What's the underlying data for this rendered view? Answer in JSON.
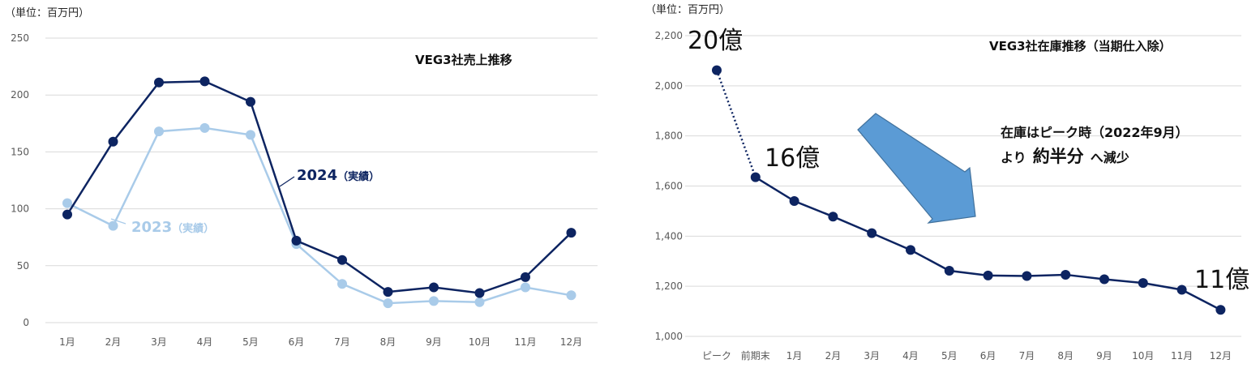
{
  "chart_data": [
    {
      "type": "line",
      "title": "VEG3社売上推移",
      "unit_label": "（単位：百万円）",
      "categories": [
        "1月",
        "2月",
        "3月",
        "4月",
        "5月",
        "6月",
        "7月",
        "8月",
        "9月",
        "10月",
        "11月",
        "12月"
      ],
      "ylim": [
        0,
        250
      ],
      "yticks": [
        "0",
        "50",
        "100",
        "150",
        "200",
        "250"
      ],
      "grid": true,
      "series": [
        {
          "name": "2023（実績）",
          "name_year": "2023",
          "name_suffix": "（実績）",
          "color": "#a9cbe9",
          "values": [
            105,
            85,
            168,
            171,
            165,
            69,
            34,
            17,
            19,
            18,
            31,
            24
          ]
        },
        {
          "name": "2024（実績）",
          "name_year": "2024",
          "name_suffix": "（実績）",
          "color": "#0d2461",
          "values": [
            95,
            159,
            211,
            212,
            194,
            72,
            55,
            27,
            31,
            26,
            40,
            79
          ]
        }
      ]
    },
    {
      "type": "line",
      "title": "VEG3社在庫推移（当期仕入除）",
      "unit_label": "（単位：百万円）",
      "categories": [
        "ピーク",
        "前期末",
        "1月",
        "2月",
        "3月",
        "4月",
        "5月",
        "6月",
        "7月",
        "8月",
        "9月",
        "10月",
        "11月",
        "12月"
      ],
      "ylim": [
        1000,
        2200
      ],
      "yticks": [
        "1,000",
        "1,200",
        "1,400",
        "1,600",
        "1,800",
        "2,000",
        "2,200"
      ],
      "grid": true,
      "series": [
        {
          "name": "",
          "color": "#0d2461",
          "values": [
            2062,
            1635,
            1540,
            1478,
            1412,
            1345,
            1262,
            1243,
            1241,
            1246,
            1228,
            1213,
            1186,
            1106
          ]
        }
      ],
      "annotations": {
        "peak": "20億",
        "prev_end": "16億",
        "end": "11億",
        "note_line1": "在庫はピーク時（2022年9月）",
        "note_line2_a": "より",
        "note_line2_b": "約半分",
        "note_line2_c": "へ減少",
        "arrow_color": "#5b9bd5"
      }
    }
  ]
}
